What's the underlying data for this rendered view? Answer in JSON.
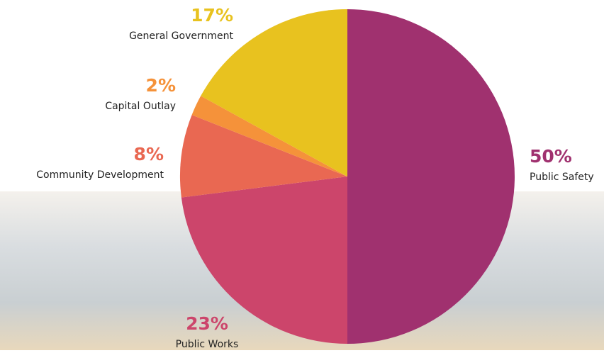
{
  "chart_data": {
    "type": "pie",
    "categories": [
      "Public Safety",
      "Public Works",
      "Community Development",
      "Capital Outlay",
      "General Government"
    ],
    "values": [
      50,
      23,
      8,
      2,
      17
    ],
    "value_labels": [
      "50%",
      "23%",
      "8%",
      "2%",
      "17%"
    ],
    "colors": [
      "#a0316f",
      "#cc456b",
      "#e96852",
      "#f5923a",
      "#e8c21f"
    ]
  }
}
